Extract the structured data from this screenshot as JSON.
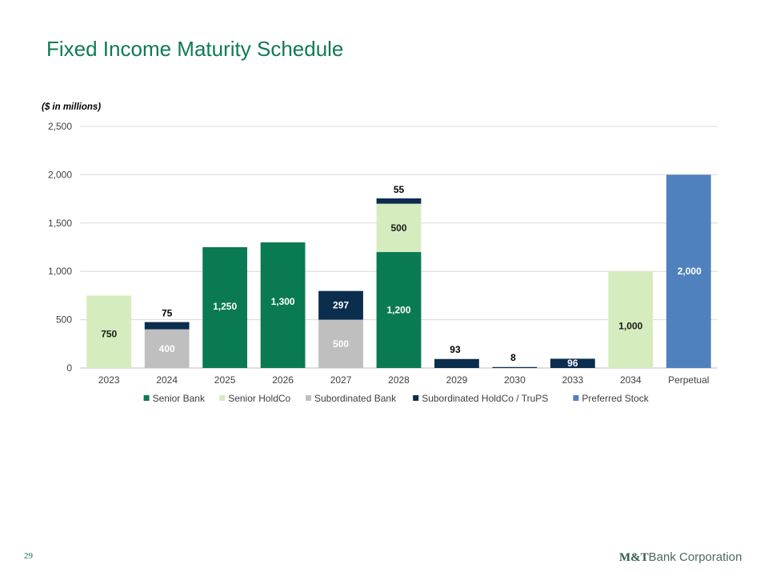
{
  "page": {
    "title": "Fixed Income Maturity Schedule",
    "units_note": "($ in millions)",
    "page_number": "29",
    "logo_mt": "M&T",
    "logo_rest": "Bank Corporation"
  },
  "chart_data": {
    "type": "bar",
    "stacked": true,
    "title": "Fixed Income Maturity Schedule",
    "ylabel": "($ in millions)",
    "xlabel": "",
    "ylim": [
      0,
      2500
    ],
    "yticks": [
      0,
      500,
      1000,
      1500,
      2000,
      2500
    ],
    "ytick_labels": [
      "0",
      "500",
      "1,000",
      "1,500",
      "2,000",
      "2,500"
    ],
    "grid": true,
    "legend_position": "bottom",
    "categories": [
      "2023",
      "2024",
      "2025",
      "2026",
      "2027",
      "2028",
      "2029",
      "2030",
      "2033",
      "2034",
      "Perpetual"
    ],
    "series": [
      {
        "name": "Senior Bank",
        "color": "#0a7a52",
        "label_color": "#ffffff",
        "values": [
          0,
          0,
          1250,
          1300,
          0,
          1200,
          0,
          0,
          0,
          0,
          0
        ],
        "labels": [
          "",
          "",
          "1,250",
          "1,300",
          "",
          "1,200",
          "",
          "",
          "",
          "",
          ""
        ]
      },
      {
        "name": "Senior HoldCo",
        "color": "#d5ecbe",
        "label_color": "#1a1a1a",
        "values": [
          750,
          0,
          0,
          0,
          0,
          500,
          0,
          0,
          0,
          1000,
          0
        ],
        "labels": [
          "750",
          "",
          "",
          "",
          "",
          "500",
          "",
          "",
          "",
          "1,000",
          ""
        ]
      },
      {
        "name": "Subordinated Bank",
        "color": "#bfbfbf",
        "label_color": "#ffffff",
        "values": [
          0,
          400,
          0,
          0,
          500,
          0,
          0,
          0,
          0,
          0,
          0
        ],
        "labels": [
          "",
          "400",
          "",
          "",
          "500",
          "",
          "",
          "",
          "",
          "",
          ""
        ]
      },
      {
        "name": "Subordinated HoldCo / TruPS",
        "color": "#0b2d4e",
        "label_color": "#ffffff",
        "values": [
          0,
          75,
          0,
          0,
          297,
          55,
          93,
          8,
          96,
          0,
          0
        ],
        "labels": [
          "",
          "75",
          "",
          "",
          "297",
          "55",
          "93",
          "8",
          "96",
          "",
          ""
        ]
      },
      {
        "name": "Preferred Stock",
        "color": "#4f81bd",
        "label_color": "#ffffff",
        "values": [
          0,
          0,
          0,
          0,
          0,
          0,
          0,
          0,
          0,
          0,
          2000
        ],
        "labels": [
          "",
          "",
          "",
          "",
          "",
          "",
          "",
          "",
          "",
          "",
          "2,000"
        ]
      }
    ]
  }
}
